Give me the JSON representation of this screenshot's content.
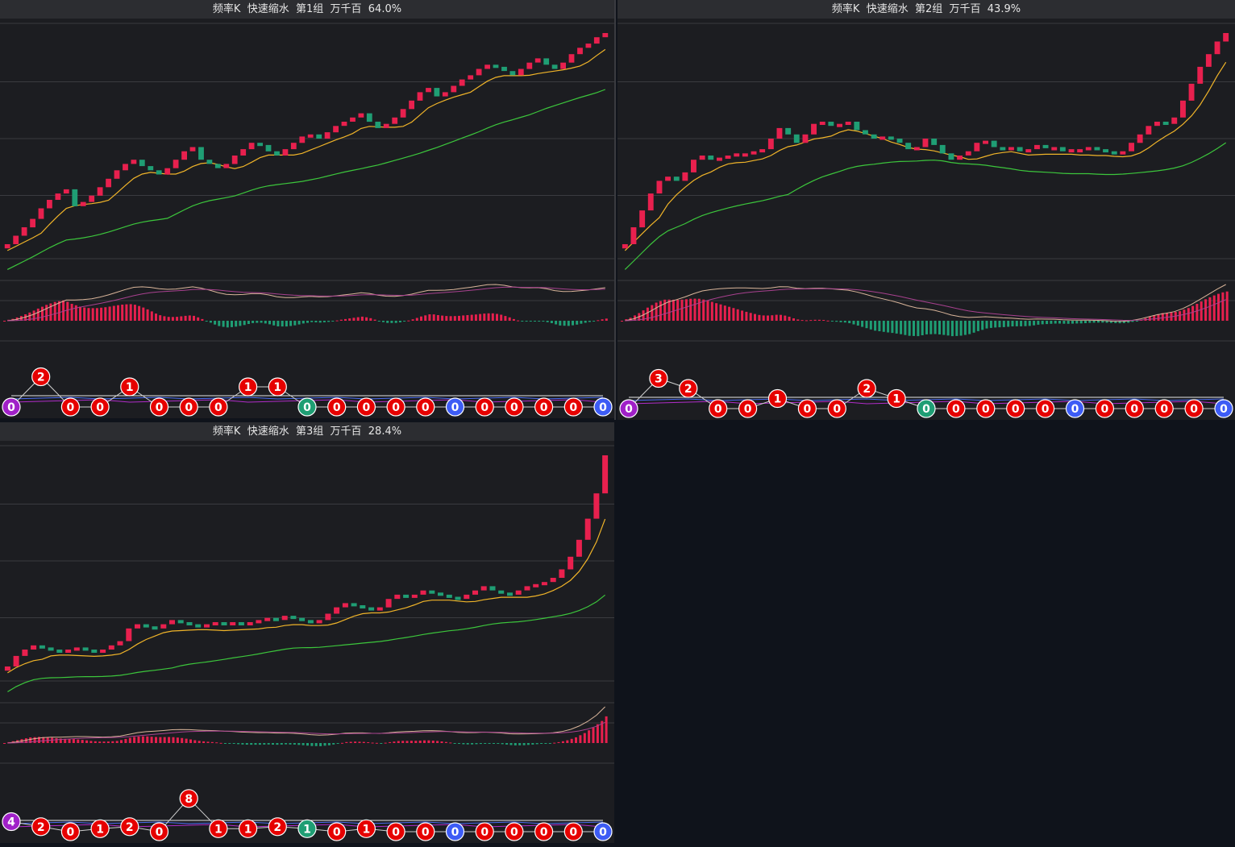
{
  "colors": {
    "up": "#e8204e",
    "down": "#1f9e74",
    "ma_short": "#f0b429",
    "ma_long": "#3cc63c",
    "dif": "#d9b59a",
    "dea": "#a8418f",
    "grid": "#3a3b40",
    "bubble_red": "#e60000",
    "bubble_green": "#1f9e74",
    "bubble_blue": "#3d5cf5",
    "bubble_purple": "#a020c8"
  },
  "panels": [
    {
      "title": "频率K  快速缩水  第1组  万千百  64.0%",
      "bubbles": [
        {
          "v": "0",
          "c": "purple",
          "level": 0
        },
        {
          "v": "2",
          "c": "red",
          "level": 3
        },
        {
          "v": "0",
          "c": "red",
          "level": 0
        },
        {
          "v": "0",
          "c": "red",
          "level": 0
        },
        {
          "v": "1",
          "c": "red",
          "level": 2
        },
        {
          "v": "0",
          "c": "red",
          "level": 0
        },
        {
          "v": "0",
          "c": "red",
          "level": 0
        },
        {
          "v": "0",
          "c": "red",
          "level": 0
        },
        {
          "v": "1",
          "c": "red",
          "level": 2
        },
        {
          "v": "1",
          "c": "red",
          "level": 2
        },
        {
          "v": "0",
          "c": "green",
          "level": 0
        },
        {
          "v": "0",
          "c": "red",
          "level": 0
        },
        {
          "v": "0",
          "c": "red",
          "level": 0
        },
        {
          "v": "0",
          "c": "red",
          "level": 0
        },
        {
          "v": "0",
          "c": "red",
          "level": 0
        },
        {
          "v": "0",
          "c": "blue",
          "level": 0
        },
        {
          "v": "0",
          "c": "red",
          "level": 0
        },
        {
          "v": "0",
          "c": "red",
          "level": 0
        },
        {
          "v": "0",
          "c": "red",
          "level": 0
        },
        {
          "v": "0",
          "c": "red",
          "level": 0
        },
        {
          "v": "0",
          "c": "blue",
          "level": 0
        }
      ]
    },
    {
      "title": "频率K  快速缩水  第2组  万千百  43.9%",
      "bubbles": [
        {
          "v": "0",
          "c": "purple",
          "level": 0
        },
        {
          "v": "3",
          "c": "red",
          "level": 3
        },
        {
          "v": "2",
          "c": "red",
          "level": 2
        },
        {
          "v": "0",
          "c": "red",
          "level": 0
        },
        {
          "v": "0",
          "c": "red",
          "level": 0
        },
        {
          "v": "1",
          "c": "red",
          "level": 1
        },
        {
          "v": "0",
          "c": "red",
          "level": 0
        },
        {
          "v": "0",
          "c": "red",
          "level": 0
        },
        {
          "v": "2",
          "c": "red",
          "level": 2
        },
        {
          "v": "1",
          "c": "red",
          "level": 1
        },
        {
          "v": "0",
          "c": "green",
          "level": 0
        },
        {
          "v": "0",
          "c": "red",
          "level": 0
        },
        {
          "v": "0",
          "c": "red",
          "level": 0
        },
        {
          "v": "0",
          "c": "red",
          "level": 0
        },
        {
          "v": "0",
          "c": "red",
          "level": 0
        },
        {
          "v": "0",
          "c": "blue",
          "level": 0
        },
        {
          "v": "0",
          "c": "red",
          "level": 0
        },
        {
          "v": "0",
          "c": "red",
          "level": 0
        },
        {
          "v": "0",
          "c": "red",
          "level": 0
        },
        {
          "v": "0",
          "c": "red",
          "level": 0
        },
        {
          "v": "0",
          "c": "blue",
          "level": 0
        }
      ]
    },
    {
      "title": "频率K  快速缩水  第3组  万千百  28.4%",
      "bubbles": [
        {
          "v": "4",
          "c": "purple",
          "level": 1
        },
        {
          "v": "2",
          "c": "red",
          "level": 0.5
        },
        {
          "v": "0",
          "c": "red",
          "level": 0
        },
        {
          "v": "1",
          "c": "red",
          "level": 0.3
        },
        {
          "v": "2",
          "c": "red",
          "level": 0.5
        },
        {
          "v": "0",
          "c": "red",
          "level": 0
        },
        {
          "v": "8",
          "c": "red",
          "level": 3.3
        },
        {
          "v": "1",
          "c": "red",
          "level": 0.3
        },
        {
          "v": "1",
          "c": "red",
          "level": 0.3
        },
        {
          "v": "2",
          "c": "red",
          "level": 0.5
        },
        {
          "v": "1",
          "c": "green",
          "level": 0.3
        },
        {
          "v": "0",
          "c": "red",
          "level": 0
        },
        {
          "v": "1",
          "c": "red",
          "level": 0.3
        },
        {
          "v": "0",
          "c": "red",
          "level": 0
        },
        {
          "v": "0",
          "c": "red",
          "level": 0
        },
        {
          "v": "0",
          "c": "blue",
          "level": 0
        },
        {
          "v": "0",
          "c": "red",
          "level": 0
        },
        {
          "v": "0",
          "c": "red",
          "level": 0
        },
        {
          "v": "0",
          "c": "red",
          "level": 0
        },
        {
          "v": "0",
          "c": "red",
          "level": 0
        },
        {
          "v": "0",
          "c": "blue",
          "level": 0
        }
      ]
    }
  ],
  "chart_data": [
    {
      "type": "candlestick",
      "title": "频率K  快速缩水  第1组  万千百  64.0%",
      "series": [
        {
          "values": [
            0,
            4,
            8,
            12,
            17,
            21,
            24,
            26,
            18,
            20,
            23,
            27,
            31,
            35,
            38,
            40,
            37,
            35,
            33,
            36,
            40,
            44,
            46,
            40,
            38,
            36,
            38,
            42,
            45,
            48,
            47,
            44,
            42,
            45,
            48,
            51,
            52,
            50,
            53,
            56,
            58,
            60,
            62,
            58,
            55,
            57,
            60,
            64,
            68,
            72,
            74,
            70,
            72,
            75,
            78,
            80,
            83,
            85,
            84,
            82,
            80,
            83,
            86,
            88,
            85,
            83,
            86,
            90,
            93,
            95,
            98,
            100
          ]
        }
      ]
    },
    {
      "type": "candlestick",
      "title": "频率K  快速缩水  第2组  万千百  43.9%",
      "series": [
        {
          "values": [
            0,
            8,
            16,
            24,
            30,
            32,
            30,
            34,
            40,
            42,
            40,
            41,
            42,
            43,
            43,
            44,
            45,
            50,
            55,
            52,
            48,
            52,
            57,
            58,
            56,
            57,
            58,
            54,
            52,
            50,
            51,
            50,
            48,
            45,
            46,
            50,
            47,
            43,
            40,
            42,
            44,
            48,
            49,
            46,
            45,
            46,
            44,
            45,
            47,
            46,
            46,
            44,
            45,
            45,
            46,
            45,
            44,
            43,
            44,
            48,
            52,
            56,
            58,
            57,
            60,
            68,
            76,
            84,
            90,
            96,
            100
          ]
        }
      ]
    },
    {
      "type": "candlestick",
      "title": "频率K  快速缩水  第3组  万千百  28.4%",
      "series": [
        {
          "values": [
            0,
            5,
            8,
            10,
            9,
            8,
            7,
            8,
            9,
            8,
            7,
            8,
            10,
            12,
            18,
            20,
            19,
            18,
            20,
            22,
            21,
            20,
            19,
            20,
            21,
            20,
            21,
            20,
            21,
            22,
            23,
            22,
            24,
            23,
            22,
            21,
            22,
            25,
            28,
            30,
            29,
            28,
            27,
            28,
            32,
            34,
            33,
            34,
            36,
            35,
            34,
            33,
            32,
            34,
            36,
            38,
            36,
            35,
            34,
            36,
            38,
            39,
            40,
            42,
            46,
            52,
            60,
            70,
            82,
            100
          ]
        }
      ]
    }
  ]
}
